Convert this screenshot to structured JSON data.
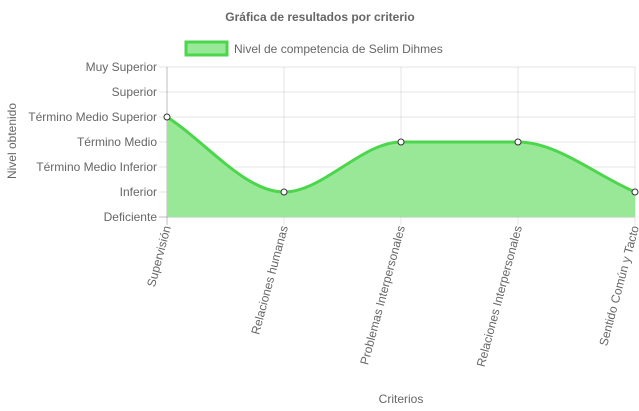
{
  "chart_data": {
    "type": "area",
    "title": "Gráfica de resultados por criterio",
    "xlabel": "Criterios",
    "ylabel": "Nivel obtenido",
    "categories": [
      "Supervisión",
      "Relaciones humanas",
      "Problemas Interpersonales",
      "Relaciones Interpersonales",
      "Sentido Común y Tacto"
    ],
    "levels": [
      "Deficiente",
      "Inferior",
      "Término Medio Inferior",
      "Término Medio",
      "Término Medio Superior",
      "Superior",
      "Muy Superior"
    ],
    "series": [
      {
        "name": "Nivel de competencia de Selim Dihmes",
        "values": [
          4,
          1,
          3,
          3,
          1
        ],
        "line_color": "#4cd64c",
        "fill_color": "#98e898"
      }
    ],
    "ylim": [
      0,
      6
    ],
    "grid": true,
    "legend": "top-center"
  }
}
